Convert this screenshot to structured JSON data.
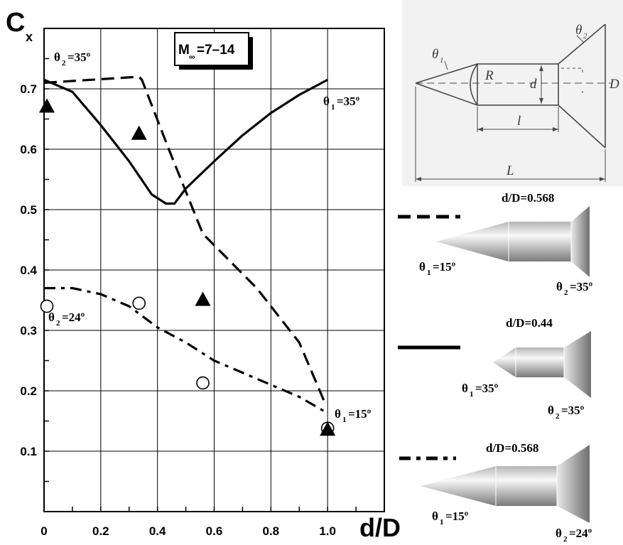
{
  "chart_data": {
    "type": "line",
    "title": "",
    "xlabel": "d/D",
    "ylabel_main": "C",
    "ylabel_sub": "x",
    "xlim": [
      0,
      1.2
    ],
    "ylim": [
      0,
      0.8
    ],
    "grid": true,
    "x_ticks": [
      0,
      0.2,
      0.4,
      0.6,
      0.8,
      1.0
    ],
    "x_tick_labels": [
      "0",
      "0.2",
      "0.4",
      "0.6",
      "0.8",
      "1.0"
    ],
    "y_ticks": [
      0.1,
      0.2,
      0.3,
      0.4,
      0.5,
      0.6,
      0.7
    ],
    "y_tick_labels": [
      "0.1",
      "0.2",
      "0.3",
      "0.4",
      "0.5",
      "0.6",
      "0.7"
    ],
    "mach_box": {
      "main": "M",
      "sub": "∞",
      "value": "=7–14"
    },
    "series": [
      {
        "style": "dashed",
        "x": [
          0,
          0.335,
          0.345,
          0.44,
          0.56,
          0.75,
          0.9,
          0.995
        ],
        "y": [
          0.71,
          0.72,
          0.715,
          0.6,
          0.46,
          0.37,
          0.28,
          0.175
        ]
      },
      {
        "style": "solid",
        "x": [
          0,
          0.1,
          0.2,
          0.3,
          0.38,
          0.43,
          0.46,
          0.5,
          0.6,
          0.7,
          0.8,
          0.9,
          1.0
        ],
        "y": [
          0.715,
          0.695,
          0.64,
          0.58,
          0.525,
          0.51,
          0.51,
          0.535,
          0.58,
          0.623,
          0.66,
          0.69,
          0.715
        ]
      },
      {
        "style": "dashdot",
        "x": [
          0,
          0.1,
          0.2,
          0.3,
          0.4,
          0.5,
          0.6,
          0.7,
          0.8,
          0.9,
          1.0
        ],
        "y": [
          0.37,
          0.37,
          0.36,
          0.34,
          0.305,
          0.28,
          0.25,
          0.23,
          0.21,
          0.19,
          0.163
        ]
      }
    ],
    "triangles": {
      "x": [
        0.01,
        0.335,
        0.56,
        1.0
      ],
      "y": [
        0.67,
        0.625,
        0.35,
        0.135
      ]
    },
    "circles": {
      "x": [
        0.01,
        0.335,
        0.56,
        1.0
      ],
      "y": [
        0.34,
        0.345,
        0.213,
        0.138
      ]
    },
    "annotations": [
      {
        "main": "θ",
        "sub": "2",
        "rest": "=35º"
      },
      {
        "main": "θ",
        "sub": "1",
        "rest": "=35º"
      },
      {
        "main": "θ",
        "sub": "2",
        "rest": "=24º"
      },
      {
        "main": "θ",
        "sub": "1",
        "rest": "=15º"
      }
    ]
  },
  "geometry_sketch": {
    "labels": {
      "theta1": "θ",
      "theta1_sub": "1",
      "theta2": "θ",
      "theta2_sub": "2",
      "R": "R",
      "d": "d",
      "D": "D",
      "l": "l",
      "L": "L"
    }
  },
  "legend": [
    {
      "style": "dashed",
      "ratio": "d/D=0.568",
      "theta1": "=15º",
      "theta2": "=35º"
    },
    {
      "style": "solid",
      "ratio": "d/D=0.44",
      "theta1": "=35º",
      "theta2": "=35º"
    },
    {
      "style": "dashdot",
      "ratio": "d/D=0.568",
      "theta1": "=15º",
      "theta2": "=24º"
    }
  ],
  "colors": {
    "line": "#000000",
    "grid": "#000000",
    "body_light": "#f5f5f5",
    "body_dark": "#8c8c8c",
    "sketch": "#555555"
  }
}
